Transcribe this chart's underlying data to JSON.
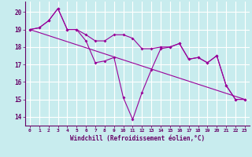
{
  "xlabel": "Windchill (Refroidissement éolien,°C)",
  "background_color": "#c8ecee",
  "grid_color": "#aad8dc",
  "line_color": "#990099",
  "x_ticks": [
    0,
    1,
    2,
    3,
    4,
    5,
    6,
    7,
    8,
    9,
    10,
    11,
    12,
    13,
    14,
    15,
    16,
    17,
    18,
    19,
    20,
    21,
    22,
    23
  ],
  "y_ticks": [
    14,
    15,
    16,
    17,
    18,
    19,
    20
  ],
  "ylim": [
    13.5,
    20.6
  ],
  "xlim": [
    -0.5,
    23.5
  ],
  "series": [
    {
      "x": [
        0,
        1,
        2,
        3,
        4,
        5,
        6,
        7,
        8,
        9,
        10,
        11,
        12,
        13,
        14,
        15,
        16,
        17,
        18,
        19,
        20,
        21,
        22,
        23
      ],
      "y": [
        19.0,
        19.1,
        19.5,
        20.2,
        19.0,
        19.0,
        18.35,
        17.1,
        17.2,
        17.4,
        15.1,
        13.85,
        15.4,
        16.7,
        17.9,
        18.0,
        18.2,
        17.3,
        17.4,
        17.1,
        17.5,
        15.8,
        15.0,
        15.0
      ],
      "marker": true
    },
    {
      "x": [
        0,
        1,
        2,
        3,
        4,
        5,
        6,
        7,
        8,
        9,
        10,
        11,
        12,
        13,
        14,
        15,
        16,
        17,
        18,
        19,
        20,
        21,
        22,
        23
      ],
      "y": [
        19.0,
        19.1,
        19.5,
        20.2,
        19.0,
        19.0,
        18.7,
        18.35,
        18.35,
        18.7,
        18.7,
        18.5,
        17.9,
        17.9,
        18.0,
        18.0,
        18.2,
        17.3,
        17.4,
        17.1,
        17.5,
        15.8,
        15.0,
        15.0
      ],
      "marker": true
    },
    {
      "x": [
        0,
        23
      ],
      "y": [
        19.0,
        15.0
      ],
      "marker": false
    }
  ]
}
